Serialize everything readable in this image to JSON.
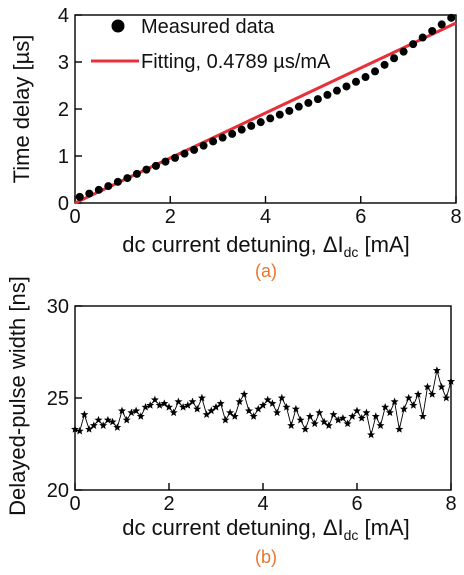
{
  "chart_data": [
    {
      "type": "scatter",
      "panel_label": "(a)",
      "xlabel": {
        "prefix": "dc current detuning, ",
        "symbol": "ΔI",
        "subscript": "dc",
        "suffix": " [mA]"
      },
      "ylabel": "Time delay [µs]",
      "xlim": [
        0,
        8
      ],
      "ylim": [
        0,
        4
      ],
      "xticks": [
        "0",
        "2",
        "4",
        "6",
        "8"
      ],
      "yticks": [
        "0",
        "1",
        "2",
        "3",
        "4"
      ],
      "legend": {
        "position": "top-left"
      },
      "series": [
        {
          "name": "Measured data",
          "marker": "circle",
          "color": "#000000",
          "x": [
            0.1,
            0.3,
            0.5,
            0.7,
            0.9,
            1.1,
            1.3,
            1.5,
            1.7,
            1.9,
            2.1,
            2.3,
            2.5,
            2.7,
            2.9,
            3.1,
            3.3,
            3.5,
            3.7,
            3.9,
            4.1,
            4.3,
            4.5,
            4.7,
            4.9,
            5.1,
            5.3,
            5.5,
            5.7,
            5.9,
            6.1,
            6.3,
            6.5,
            6.7,
            6.9,
            7.1,
            7.3,
            7.5,
            7.7,
            7.9
          ],
          "y": [
            0.13,
            0.2,
            0.28,
            0.36,
            0.45,
            0.53,
            0.62,
            0.71,
            0.79,
            0.88,
            0.96,
            1.05,
            1.13,
            1.22,
            1.31,
            1.39,
            1.47,
            1.56,
            1.64,
            1.72,
            1.8,
            1.88,
            1.96,
            2.05,
            2.13,
            2.21,
            2.3,
            2.39,
            2.48,
            2.58,
            2.68,
            2.8,
            2.94,
            3.08,
            3.22,
            3.38,
            3.52,
            3.66,
            3.8,
            3.94
          ]
        },
        {
          "name": "Fitting, 0.4789 µs/mA",
          "type": "line",
          "color": "#e8303a",
          "x": [
            0,
            8
          ],
          "y": [
            0.0,
            3.83
          ]
        }
      ]
    },
    {
      "type": "line",
      "panel_label": "(b)",
      "xlabel": {
        "prefix": "dc current detuning, ",
        "symbol": "ΔI",
        "subscript": "dc",
        "suffix": " [mA]"
      },
      "ylabel": "Delayed-pulse width [ns]",
      "xlim": [
        0,
        8
      ],
      "ylim": [
        20,
        30
      ],
      "xticks": [
        "0",
        "2",
        "4",
        "6",
        "8"
      ],
      "yticks": [
        "20",
        "25",
        "30"
      ],
      "series": [
        {
          "marker": "star",
          "color": "#000000",
          "x": [
            0.0,
            0.1,
            0.2,
            0.3,
            0.4,
            0.5,
            0.6,
            0.7,
            0.8,
            0.9,
            1.0,
            1.1,
            1.2,
            1.3,
            1.4,
            1.5,
            1.6,
            1.7,
            1.8,
            1.9,
            2.0,
            2.1,
            2.2,
            2.3,
            2.4,
            2.5,
            2.6,
            2.7,
            2.8,
            2.9,
            3.0,
            3.1,
            3.2,
            3.3,
            3.4,
            3.5,
            3.6,
            3.7,
            3.8,
            3.9,
            4.0,
            4.1,
            4.2,
            4.3,
            4.4,
            4.5,
            4.6,
            4.7,
            4.8,
            4.9,
            5.0,
            5.1,
            5.2,
            5.3,
            5.4,
            5.5,
            5.6,
            5.7,
            5.8,
            5.9,
            6.0,
            6.1,
            6.2,
            6.3,
            6.4,
            6.5,
            6.6,
            6.7,
            6.8,
            6.9,
            7.0,
            7.1,
            7.2,
            7.3,
            7.4,
            7.5,
            7.6,
            7.7,
            7.8,
            7.9,
            8.0
          ],
          "y": [
            23.3,
            23.2,
            24.1,
            23.3,
            23.5,
            23.8,
            23.5,
            23.8,
            23.7,
            23.4,
            24.3,
            23.8,
            24.2,
            24.3,
            24.0,
            24.5,
            24.6,
            24.9,
            24.6,
            24.7,
            24.5,
            24.2,
            24.8,
            24.5,
            24.6,
            24.8,
            24.4,
            25.0,
            24.1,
            24.3,
            24.5,
            24.7,
            23.8,
            24.2,
            24.0,
            24.8,
            25.2,
            24.3,
            24.0,
            24.4,
            24.6,
            24.9,
            24.7,
            24.2,
            25.0,
            24.5,
            23.5,
            24.4,
            23.8,
            23.3,
            24.0,
            23.6,
            24.2,
            23.7,
            23.5,
            24.1,
            23.8,
            23.9,
            23.6,
            24.0,
            24.3,
            23.9,
            24.2,
            23.0,
            24.0,
            23.5,
            24.5,
            24.2,
            24.8,
            23.3,
            24.4,
            25.0,
            24.6,
            25.2,
            24.0,
            25.6,
            25.2,
            26.5,
            25.6,
            25.0,
            25.9
          ]
        }
      ]
    }
  ]
}
